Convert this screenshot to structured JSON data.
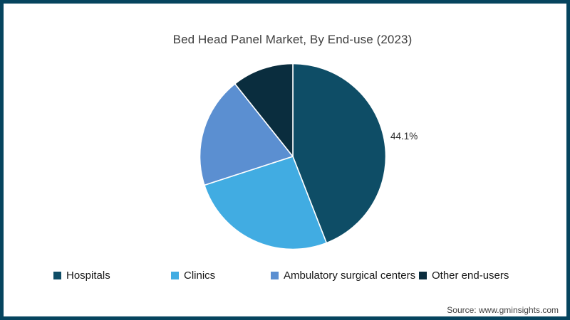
{
  "title": "Bed Head Panel Market, By End-use (2023)",
  "source_note": "Source: www.gminsights.com",
  "colors": {
    "frame_border": "#06445e",
    "slice_separator": "#ffffff",
    "title_text": "#3d3d3d",
    "label_text": "#2b2b2b"
  },
  "pie_label": "44.1%",
  "chart_data": {
    "type": "pie",
    "title": "Bed Head Panel Market, By End-use (2023)",
    "categories": [
      "Hospitals",
      "Clinics",
      "Ambulatory surgical centers",
      "Other end-users"
    ],
    "values": [
      44.1,
      25.9,
      19.3,
      10.7
    ],
    "colors": [
      "#0e4d66",
      "#41ace2",
      "#5b8fd1",
      "#0a2d3e"
    ],
    "data_labels": [
      "44.1%",
      "",
      "",
      ""
    ],
    "start_angle_deg": 0,
    "direction": "clockwise",
    "legend_position": "bottom",
    "grid": false
  },
  "legend": {
    "items": [
      {
        "label": "Hospitals"
      },
      {
        "label": "Clinics"
      },
      {
        "label": "Ambulatory surgical centers"
      },
      {
        "label": "Other end-users"
      }
    ]
  }
}
